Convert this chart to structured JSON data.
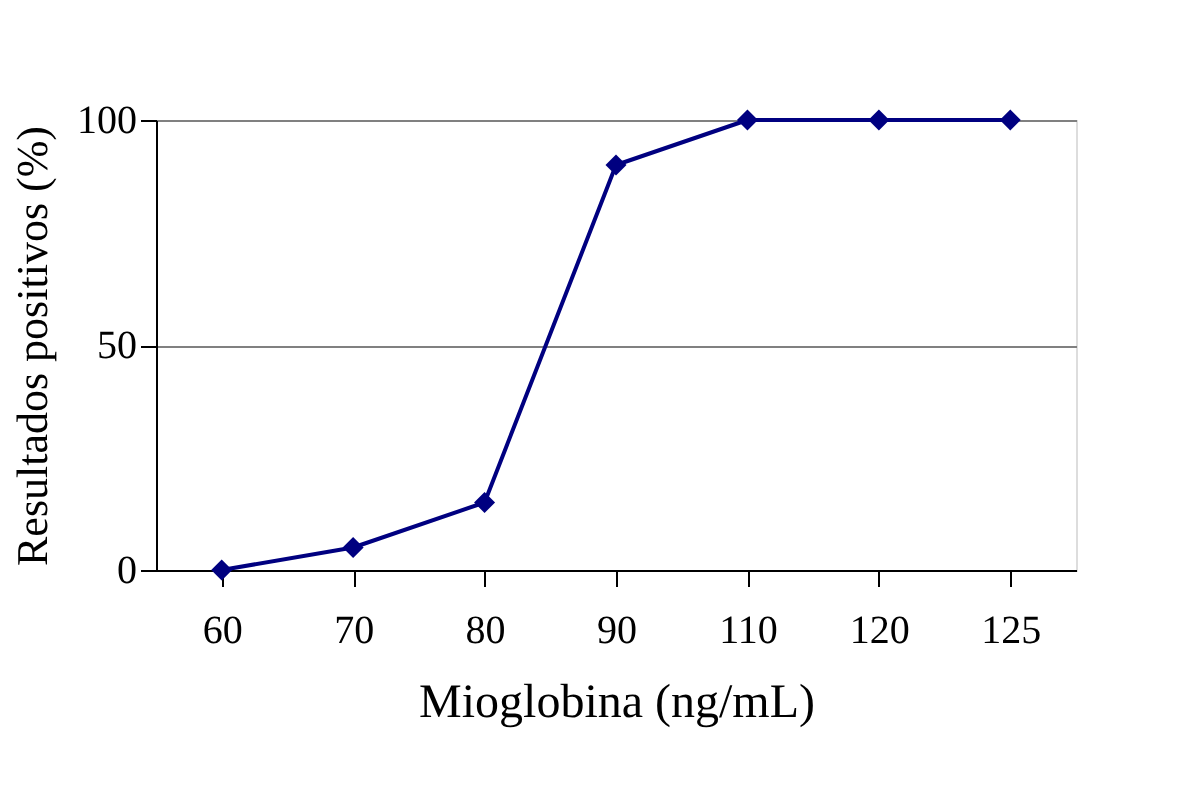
{
  "chart_data": {
    "type": "line",
    "xlabel": "Mioglobina (ng/mL)",
    "ylabel": "Resultados positivos (%)",
    "categories": [
      "60",
      "70",
      "80",
      "90",
      "110",
      "120",
      "125"
    ],
    "series": [
      {
        "color": "#000080",
        "values": [
          0,
          5,
          15,
          90,
          100,
          100,
          100
        ]
      }
    ],
    "ylim": [
      0,
      100
    ],
    "yticks": [
      0,
      50,
      100
    ],
    "grid": "y",
    "marker": "diamond",
    "line_style": "solid",
    "legend": false
  }
}
